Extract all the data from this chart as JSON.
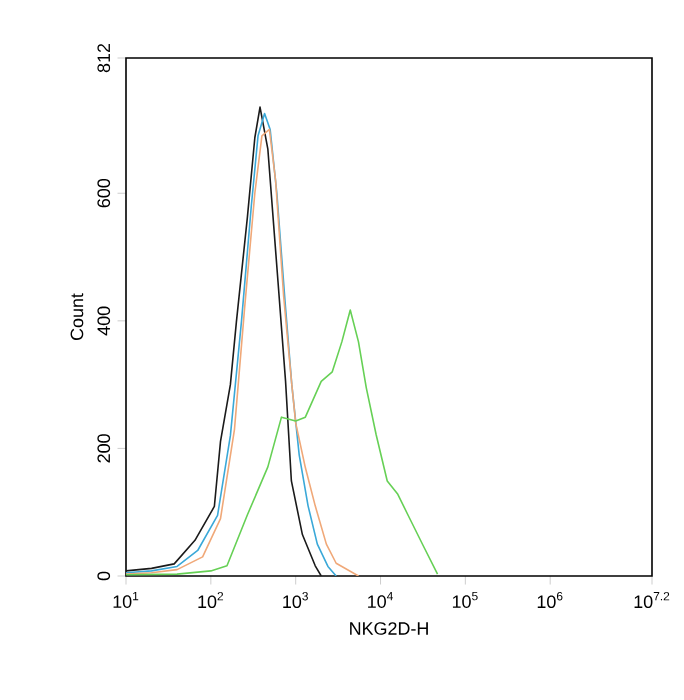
{
  "chart_data": {
    "type": "line",
    "xlabel": "NKG2D-H",
    "ylabel": "Count",
    "log": "x",
    "marker": "none",
    "line_style": "solid",
    "xlim": [
      10,
      15848932
    ],
    "ylim": [
      0,
      812
    ],
    "xticks": [
      {
        "value": 10,
        "label": "10$^{1}$"
      },
      {
        "value": 100,
        "label": "10$^{2}$"
      },
      {
        "value": 1000,
        "label": "10$^{3}$"
      },
      {
        "value": 10000,
        "label": "10$^{4}$"
      },
      {
        "value": 100000,
        "label": "10$^{5}$"
      },
      {
        "value": 1000000,
        "label": "10$^{6}$"
      },
      {
        "value": 15848932,
        "label": "10$^{7.2}$"
      }
    ],
    "yticks": [
      0,
      200,
      400,
      600,
      812
    ],
    "series": [
      {
        "color": "#1a1a1a",
        "x": [
          10,
          20,
          37,
          65,
          110,
          130,
          170,
          200,
          270,
          330,
          380,
          470,
          620,
          760,
          890,
          1200,
          1700,
          2000
        ],
        "values": [
          8,
          12,
          19,
          56,
          109,
          211,
          300,
          398,
          563,
          687,
          735,
          669,
          460,
          305,
          149,
          65,
          16,
          0
        ]
      },
      {
        "color": "#3aa8d8",
        "x": [
          10,
          20,
          40,
          70,
          120,
          170,
          230,
          300,
          360,
          430,
          500,
          600,
          750,
          900,
          1100,
          1400,
          1800,
          2400,
          3000
        ],
        "values": [
          5,
          8,
          15,
          40,
          95,
          220,
          400,
          580,
          690,
          725,
          700,
          600,
          430,
          300,
          190,
          110,
          50,
          15,
          0
        ]
      },
      {
        "color": "#f0a878",
        "x": [
          10,
          20,
          40,
          80,
          130,
          190,
          250,
          330,
          400,
          490,
          580,
          720,
          900,
          1000,
          1300,
          1700,
          2300,
          3000,
          5500
        ],
        "values": [
          3,
          5,
          10,
          30,
          90,
          230,
          420,
          600,
          690,
          700,
          620,
          440,
          300,
          240,
          170,
          110,
          50,
          20,
          0
        ]
      },
      {
        "color": "#66d055",
        "x": [
          10,
          40,
          100,
          155,
          270,
          470,
          680,
          1000,
          1300,
          2000,
          2700,
          3500,
          4400,
          5500,
          6800,
          8900,
          12000,
          16000,
          21000,
          32000,
          47000
        ],
        "values": [
          2,
          3,
          8,
          16,
          96,
          171,
          249,
          243,
          249,
          305,
          320,
          367,
          417,
          367,
          295,
          221,
          149,
          128,
          96,
          47,
          3
        ]
      }
    ]
  }
}
